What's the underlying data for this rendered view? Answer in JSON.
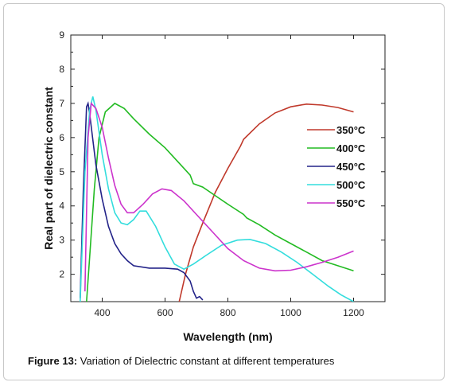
{
  "caption": {
    "label": "Figure 13:",
    "text": " Variation of Dielectric constant at different temperatures"
  },
  "chart_data": {
    "type": "line",
    "xlabel": "Wavelength  (nm)",
    "ylabel": "Real part of dielectric constant",
    "xlim": [
      300,
      1300
    ],
    "ylim": [
      1.2,
      9
    ],
    "xticks": [
      400,
      600,
      800,
      1000,
      1200
    ],
    "yticks": [
      2,
      3,
      4,
      5,
      6,
      7,
      8,
      9
    ],
    "legend_position": "right",
    "grid": false,
    "series": [
      {
        "name": "350°C",
        "color": "#c0392b",
        "points": [
          [
            645,
            1.2
          ],
          [
            665,
            2.0
          ],
          [
            690,
            2.8
          ],
          [
            720,
            3.5
          ],
          [
            760,
            4.4
          ],
          [
            800,
            5.1
          ],
          [
            840,
            5.75
          ],
          [
            850,
            5.95
          ],
          [
            900,
            6.4
          ],
          [
            950,
            6.72
          ],
          [
            1000,
            6.9
          ],
          [
            1050,
            6.98
          ],
          [
            1100,
            6.95
          ],
          [
            1150,
            6.88
          ],
          [
            1200,
            6.75
          ]
        ]
      },
      {
        "name": "400°C",
        "color": "#22bb22",
        "points": [
          [
            350,
            1.2
          ],
          [
            360,
            2.5
          ],
          [
            375,
            4.5
          ],
          [
            390,
            6.0
          ],
          [
            410,
            6.75
          ],
          [
            440,
            7.0
          ],
          [
            470,
            6.85
          ],
          [
            500,
            6.55
          ],
          [
            550,
            6.1
          ],
          [
            600,
            5.7
          ],
          [
            650,
            5.2
          ],
          [
            680,
            4.9
          ],
          [
            690,
            4.65
          ],
          [
            720,
            4.55
          ],
          [
            760,
            4.3
          ],
          [
            800,
            4.05
          ],
          [
            850,
            3.75
          ],
          [
            855,
            3.7
          ],
          [
            860,
            3.65
          ],
          [
            900,
            3.45
          ],
          [
            950,
            3.15
          ],
          [
            1000,
            2.9
          ],
          [
            1050,
            2.65
          ],
          [
            1100,
            2.4
          ],
          [
            1150,
            2.25
          ],
          [
            1200,
            2.1
          ]
        ]
      },
      {
        "name": "450°C",
        "color": "#222288",
        "points": [
          [
            330,
            1.3
          ],
          [
            340,
            4.5
          ],
          [
            350,
            6.9
          ],
          [
            355,
            7.0
          ],
          [
            360,
            6.7
          ],
          [
            380,
            5.2
          ],
          [
            400,
            4.2
          ],
          [
            420,
            3.4
          ],
          [
            440,
            2.9
          ],
          [
            460,
            2.6
          ],
          [
            480,
            2.4
          ],
          [
            500,
            2.25
          ],
          [
            550,
            2.18
          ],
          [
            600,
            2.18
          ],
          [
            640,
            2.15
          ],
          [
            660,
            2.05
          ],
          [
            680,
            1.8
          ],
          [
            690,
            1.5
          ],
          [
            700,
            1.3
          ],
          [
            710,
            1.35
          ],
          [
            720,
            1.25
          ]
        ]
      },
      {
        "name": "500°C",
        "color": "#33dddd",
        "points": [
          [
            330,
            1.2
          ],
          [
            345,
            5.0
          ],
          [
            360,
            6.8
          ],
          [
            370,
            7.2
          ],
          [
            380,
            6.8
          ],
          [
            400,
            5.5
          ],
          [
            420,
            4.5
          ],
          [
            440,
            3.8
          ],
          [
            460,
            3.5
          ],
          [
            480,
            3.45
          ],
          [
            500,
            3.6
          ],
          [
            520,
            3.85
          ],
          [
            540,
            3.85
          ],
          [
            570,
            3.4
          ],
          [
            600,
            2.8
          ],
          [
            630,
            2.3
          ],
          [
            660,
            2.15
          ],
          [
            690,
            2.3
          ],
          [
            730,
            2.55
          ],
          [
            780,
            2.85
          ],
          [
            830,
            3.0
          ],
          [
            870,
            3.02
          ],
          [
            920,
            2.9
          ],
          [
            970,
            2.65
          ],
          [
            1020,
            2.35
          ],
          [
            1070,
            2.0
          ],
          [
            1120,
            1.65
          ],
          [
            1160,
            1.4
          ],
          [
            1200,
            1.2
          ]
        ]
      },
      {
        "name": "550°C",
        "color": "#cc33cc",
        "points": [
          [
            345,
            1.5
          ],
          [
            355,
            6.0
          ],
          [
            365,
            7.0
          ],
          [
            380,
            6.85
          ],
          [
            400,
            6.3
          ],
          [
            420,
            5.4
          ],
          [
            440,
            4.6
          ],
          [
            460,
            4.05
          ],
          [
            480,
            3.8
          ],
          [
            500,
            3.8
          ],
          [
            530,
            4.05
          ],
          [
            560,
            4.35
          ],
          [
            590,
            4.5
          ],
          [
            620,
            4.45
          ],
          [
            660,
            4.15
          ],
          [
            700,
            3.75
          ],
          [
            750,
            3.25
          ],
          [
            800,
            2.75
          ],
          [
            850,
            2.4
          ],
          [
            900,
            2.18
          ],
          [
            950,
            2.1
          ],
          [
            1000,
            2.12
          ],
          [
            1050,
            2.22
          ],
          [
            1100,
            2.35
          ],
          [
            1150,
            2.5
          ],
          [
            1200,
            2.68
          ]
        ]
      }
    ]
  }
}
